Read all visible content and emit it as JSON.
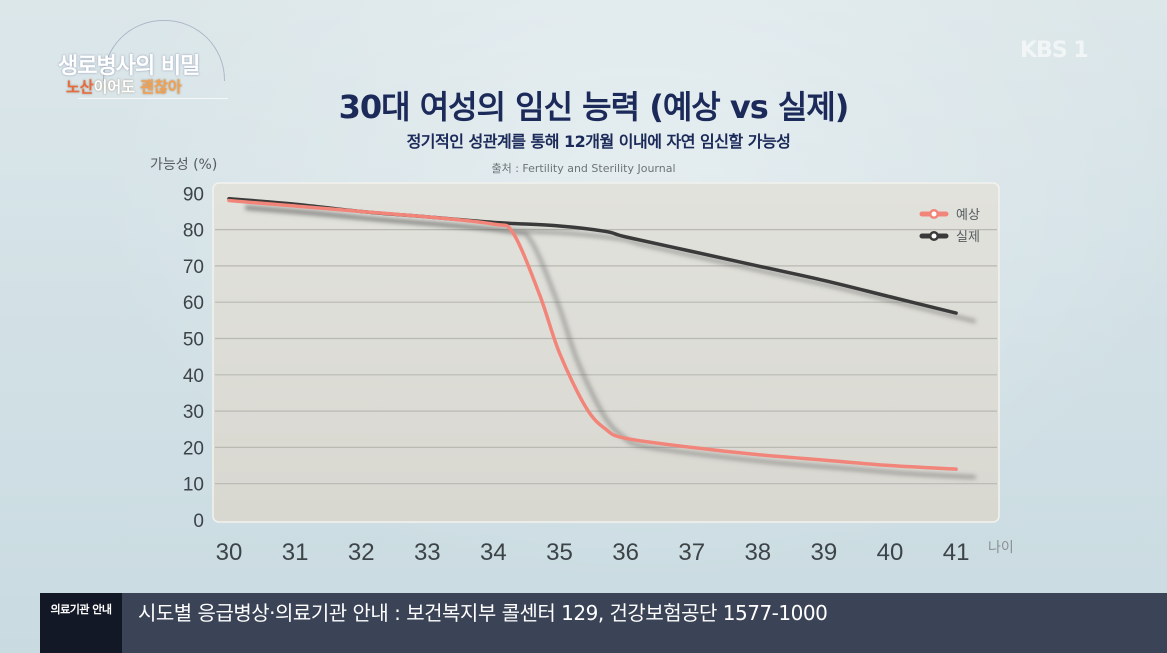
{
  "broadcast": {
    "show_title": "생로병사의 비밀",
    "show_subtitle_part1": "노산",
    "show_subtitle_part2": "이어도 ",
    "show_subtitle_part3": "괜찮아",
    "channel_logo": "KBS 1"
  },
  "chart_header": {
    "title": "30대 여성의 임신 능력 (예상 vs 실제)",
    "subtitle": "정기적인 성관계를 통해 12개월 이내에 자연 임신할 가능성",
    "source": "출처 : Fertility and Sterility Journal",
    "y_axis_label": "가능성 (%)",
    "x_axis_unit": "나이"
  },
  "legend": [
    {
      "label": "예상",
      "color": "#f2857a",
      "marker": "circle"
    },
    {
      "label": "실제",
      "color": "#3a3a3a",
      "marker": "circle"
    }
  ],
  "ticker": {
    "tag": "의료기관 안내",
    "text": "시도별 응급병상·의료기관 안내 : 보건복지부 콜센터 129, 건강보험공단 1577-1000"
  },
  "chart_data": {
    "type": "line",
    "title": "30대 여성의 임신 능력 (예상 vs 실제)",
    "subtitle": "정기적인 성관계를 통해 12개월 이내에 자연 임신할 가능성",
    "source": "출처 : Fertility and Sterility Journal",
    "xlabel": "나이",
    "ylabel": "가능성 (%)",
    "x": [
      30,
      31,
      32,
      33,
      34,
      35,
      36,
      37,
      38,
      39,
      40,
      41
    ],
    "yticks": [
      0,
      10,
      20,
      30,
      40,
      50,
      60,
      70,
      80,
      90
    ],
    "ylim": [
      0,
      90
    ],
    "xlim": [
      30,
      41
    ],
    "grid": "horizontal",
    "legend_position": "top-right",
    "series": [
      {
        "name": "예상",
        "color": "#f2857a",
        "points": [
          [
            30,
            88
          ],
          [
            31,
            86.5
          ],
          [
            32,
            85
          ],
          [
            33,
            83.5
          ],
          [
            34,
            81.5
          ],
          [
            34.3,
            79
          ],
          [
            34.7,
            62
          ],
          [
            35,
            46
          ],
          [
            35.4,
            31
          ],
          [
            35.7,
            25
          ],
          [
            36,
            22.5
          ],
          [
            37,
            20
          ],
          [
            38,
            18
          ],
          [
            39,
            16.5
          ],
          [
            40,
            15
          ],
          [
            41,
            14
          ]
        ],
        "values": [
          88,
          86.5,
          85,
          83.5,
          81.5,
          46,
          22.5,
          20,
          18,
          16.5,
          15,
          14
        ]
      },
      {
        "name": "실제",
        "color": "#3a3a3a",
        "points": [
          [
            30,
            88.5
          ],
          [
            31,
            87
          ],
          [
            32,
            85
          ],
          [
            33,
            83.5
          ],
          [
            34,
            82
          ],
          [
            35,
            81
          ],
          [
            35.7,
            79.5
          ],
          [
            36,
            78
          ],
          [
            37,
            74
          ],
          [
            38,
            70
          ],
          [
            39,
            66
          ],
          [
            40,
            61.5
          ],
          [
            41,
            57
          ]
        ],
        "values": [
          88.5,
          87,
          85,
          83.5,
          82,
          81,
          78,
          74,
          70,
          66,
          61.5,
          57
        ]
      }
    ]
  }
}
